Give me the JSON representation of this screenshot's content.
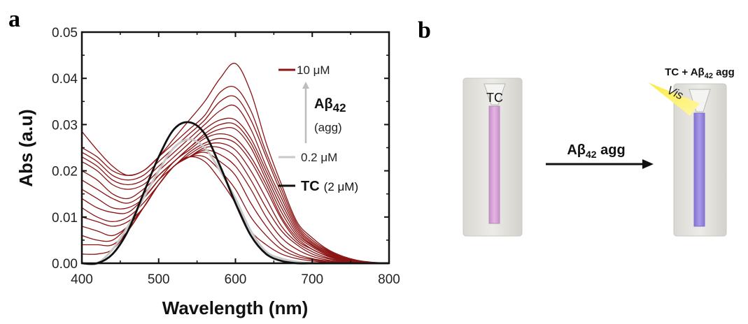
{
  "panels": {
    "a": "a",
    "b": "b"
  },
  "chart_data": {
    "type": "line",
    "xlabel": "Wavelength (nm)",
    "ylabel": "Abs (a.u)",
    "xlim": [
      400,
      800
    ],
    "ylim": [
      0.0,
      0.05
    ],
    "x_ticks": [
      "400",
      "500",
      "600",
      "700",
      "800"
    ],
    "y_ticks": [
      "0.00",
      "0.01",
      "0.02",
      "0.03",
      "0.04",
      "0.05"
    ],
    "grid": false,
    "legend_position": "top-right",
    "colors": {
      "abeta": "#8b1414",
      "tc": "#111111",
      "low": "#c8c8c8",
      "arrow": "#bdbdbd"
    },
    "legend": {
      "top_label": "10 μM",
      "species": "Aβ",
      "species_sub": "42",
      "state": "(agg)",
      "bottom_label": "0.2 μM",
      "tc_name": "TC",
      "tc_conc": "(2 μM)"
    },
    "series": [
      {
        "kind": "tc",
        "x": [
          400,
          420,
          440,
          460,
          480,
          500,
          520,
          540,
          560,
          580,
          600,
          620,
          640,
          660,
          680,
          700,
          720,
          740,
          760,
          780,
          800
        ],
        "values": [
          0.0,
          0.0,
          0.002,
          0.007,
          0.015,
          0.023,
          0.029,
          0.0305,
          0.028,
          0.021,
          0.013,
          0.006,
          0.002,
          0.0005,
          0.0,
          0.0,
          0.0,
          0.0,
          0.0,
          0.0,
          0.0
        ]
      },
      {
        "kind": "low",
        "x": [
          400,
          420,
          440,
          460,
          480,
          500,
          520,
          540,
          560,
          580,
          600,
          620,
          640,
          660,
          680,
          700,
          720,
          740,
          760,
          780,
          800
        ],
        "values": [
          0.0,
          0.0,
          0.003,
          0.008,
          0.014,
          0.02,
          0.025,
          0.0268,
          0.025,
          0.02,
          0.014,
          0.007,
          0.0025,
          0.001,
          0.0003,
          0.0,
          0.0,
          0.0,
          0.0,
          0.0,
          0.0
        ]
      },
      {
        "kind": "abeta",
        "x": [
          400,
          420,
          440,
          460,
          480,
          500,
          520,
          540,
          560,
          580,
          600,
          620,
          640,
          660,
          680,
          700,
          720,
          740,
          760,
          780,
          800
        ],
        "values": [
          0.002,
          0.002,
          0.003,
          0.007,
          0.012,
          0.017,
          0.021,
          0.023,
          0.022,
          0.018,
          0.013,
          0.007,
          0.004,
          0.002,
          0.001,
          0.0005,
          0.0002,
          0.0,
          0.0,
          0.0,
          0.0
        ]
      },
      {
        "kind": "abeta",
        "x": [
          400,
          420,
          440,
          460,
          480,
          500,
          520,
          540,
          560,
          580,
          600,
          620,
          640,
          660,
          680,
          700,
          720,
          740,
          760,
          780,
          800
        ],
        "values": [
          0.004,
          0.004,
          0.004,
          0.007,
          0.012,
          0.017,
          0.021,
          0.023,
          0.023,
          0.02,
          0.016,
          0.01,
          0.006,
          0.003,
          0.0015,
          0.0008,
          0.0003,
          0.0001,
          0.0,
          0.0,
          0.0
        ]
      },
      {
        "kind": "abeta",
        "x": [
          400,
          420,
          440,
          460,
          480,
          500,
          520,
          540,
          560,
          580,
          600,
          620,
          640,
          660,
          680,
          700,
          720,
          740,
          760,
          780,
          800
        ],
        "values": [
          0.006,
          0.005,
          0.005,
          0.008,
          0.012,
          0.017,
          0.021,
          0.023,
          0.024,
          0.022,
          0.019,
          0.013,
          0.008,
          0.004,
          0.002,
          0.001,
          0.0005,
          0.0002,
          0.0,
          0.0,
          0.0
        ]
      },
      {
        "kind": "abeta",
        "x": [
          400,
          420,
          440,
          460,
          480,
          500,
          520,
          540,
          560,
          580,
          600,
          620,
          640,
          660,
          680,
          700,
          720,
          740,
          760,
          780,
          800
        ],
        "values": [
          0.008,
          0.007,
          0.006,
          0.008,
          0.012,
          0.017,
          0.021,
          0.023,
          0.0245,
          0.0235,
          0.021,
          0.016,
          0.01,
          0.0055,
          0.003,
          0.0015,
          0.0007,
          0.0003,
          0.0001,
          0.0,
          0.0
        ]
      },
      {
        "kind": "abeta",
        "x": [
          400,
          420,
          440,
          460,
          480,
          500,
          520,
          540,
          560,
          580,
          600,
          620,
          640,
          660,
          680,
          700,
          720,
          740,
          760,
          780,
          800
        ],
        "values": [
          0.01,
          0.009,
          0.008,
          0.009,
          0.012,
          0.017,
          0.021,
          0.023,
          0.025,
          0.025,
          0.023,
          0.018,
          0.012,
          0.007,
          0.004,
          0.002,
          0.001,
          0.0004,
          0.0001,
          0.0,
          0.0
        ]
      },
      {
        "kind": "abeta",
        "x": [
          400,
          420,
          440,
          460,
          480,
          500,
          520,
          540,
          560,
          580,
          600,
          620,
          640,
          660,
          680,
          700,
          720,
          740,
          760,
          780,
          800
        ],
        "values": [
          0.012,
          0.01,
          0.009,
          0.01,
          0.013,
          0.017,
          0.021,
          0.0235,
          0.0255,
          0.026,
          0.0245,
          0.02,
          0.014,
          0.008,
          0.0045,
          0.0025,
          0.0012,
          0.0005,
          0.0002,
          0.0,
          0.0
        ]
      },
      {
        "kind": "abeta",
        "x": [
          400,
          420,
          440,
          460,
          480,
          500,
          520,
          540,
          560,
          580,
          600,
          620,
          640,
          660,
          680,
          700,
          720,
          740,
          760,
          780,
          800
        ],
        "values": [
          0.014,
          0.012,
          0.011,
          0.011,
          0.014,
          0.018,
          0.021,
          0.024,
          0.026,
          0.027,
          0.026,
          0.022,
          0.016,
          0.0095,
          0.005,
          0.003,
          0.0015,
          0.0006,
          0.0002,
          0.0,
          0.0
        ]
      },
      {
        "kind": "abeta",
        "x": [
          400,
          420,
          440,
          460,
          480,
          500,
          520,
          540,
          560,
          580,
          600,
          620,
          640,
          660,
          680,
          700,
          720,
          740,
          760,
          780,
          800
        ],
        "values": [
          0.016,
          0.014,
          0.012,
          0.012,
          0.014,
          0.018,
          0.022,
          0.0245,
          0.027,
          0.028,
          0.027,
          0.023,
          0.017,
          0.01,
          0.0055,
          0.003,
          0.0016,
          0.0007,
          0.0002,
          0.0,
          0.0
        ]
      },
      {
        "kind": "abeta",
        "x": [
          400,
          420,
          440,
          460,
          480,
          500,
          520,
          540,
          560,
          580,
          600,
          620,
          640,
          660,
          680,
          700,
          720,
          740,
          760,
          780,
          800
        ],
        "values": [
          0.018,
          0.016,
          0.014,
          0.013,
          0.015,
          0.019,
          0.022,
          0.025,
          0.0275,
          0.029,
          0.029,
          0.025,
          0.018,
          0.011,
          0.006,
          0.0035,
          0.0018,
          0.0008,
          0.0003,
          0.0001,
          0.0
        ]
      },
      {
        "kind": "abeta",
        "x": [
          400,
          420,
          440,
          460,
          480,
          500,
          520,
          540,
          560,
          580,
          600,
          620,
          640,
          660,
          680,
          700,
          720,
          740,
          760,
          780,
          800
        ],
        "values": [
          0.02,
          0.018,
          0.015,
          0.014,
          0.016,
          0.019,
          0.022,
          0.025,
          0.028,
          0.03,
          0.03,
          0.026,
          0.019,
          0.012,
          0.0065,
          0.0038,
          0.002,
          0.0009,
          0.0003,
          0.0001,
          0.0
        ]
      },
      {
        "kind": "abeta",
        "x": [
          400,
          420,
          440,
          460,
          480,
          500,
          520,
          540,
          560,
          580,
          600,
          620,
          640,
          660,
          680,
          700,
          720,
          740,
          760,
          780,
          800
        ],
        "values": [
          0.022,
          0.02,
          0.017,
          0.016,
          0.017,
          0.02,
          0.023,
          0.026,
          0.029,
          0.031,
          0.031,
          0.027,
          0.02,
          0.013,
          0.007,
          0.004,
          0.0022,
          0.001,
          0.0004,
          0.0001,
          0.0
        ]
      },
      {
        "kind": "abeta",
        "x": [
          400,
          420,
          440,
          460,
          480,
          500,
          520,
          540,
          560,
          580,
          600,
          620,
          640,
          660,
          680,
          700,
          720,
          740,
          760,
          780,
          800
        ],
        "values": [
          0.023,
          0.021,
          0.018,
          0.017,
          0.018,
          0.021,
          0.024,
          0.027,
          0.03,
          0.033,
          0.034,
          0.029,
          0.021,
          0.014,
          0.0075,
          0.0043,
          0.0024,
          0.0011,
          0.0004,
          0.0001,
          0.0
        ]
      },
      {
        "kind": "abeta",
        "x": [
          400,
          420,
          440,
          460,
          480,
          500,
          520,
          540,
          560,
          580,
          600,
          620,
          640,
          660,
          680,
          700,
          720,
          740,
          760,
          780,
          800
        ],
        "values": [
          0.024,
          0.022,
          0.019,
          0.018,
          0.019,
          0.022,
          0.025,
          0.028,
          0.031,
          0.035,
          0.036,
          0.031,
          0.023,
          0.015,
          0.008,
          0.0046,
          0.0026,
          0.0012,
          0.0005,
          0.0001,
          0.0
        ]
      },
      {
        "kind": "abeta",
        "x": [
          400,
          420,
          440,
          460,
          480,
          500,
          520,
          540,
          560,
          580,
          600,
          620,
          640,
          660,
          680,
          700,
          720,
          740,
          760,
          780,
          800
        ],
        "values": [
          0.025,
          0.023,
          0.02,
          0.019,
          0.02,
          0.023,
          0.026,
          0.029,
          0.032,
          0.037,
          0.038,
          0.033,
          0.024,
          0.016,
          0.0085,
          0.005,
          0.0028,
          0.0013,
          0.0005,
          0.0001,
          0.0
        ]
      },
      {
        "kind": "abeta",
        "x": [
          400,
          420,
          440,
          460,
          480,
          500,
          520,
          540,
          560,
          580,
          600,
          620,
          640,
          660,
          680,
          700,
          720,
          740,
          760,
          780,
          800
        ],
        "values": [
          0.0285,
          0.0245,
          0.021,
          0.019,
          0.02,
          0.023,
          0.027,
          0.031,
          0.035,
          0.04,
          0.0432,
          0.037,
          0.026,
          0.017,
          0.009,
          0.0055,
          0.003,
          0.0015,
          0.0006,
          0.0002,
          0.0
        ]
      }
    ]
  },
  "photos": {
    "left_label": "TC",
    "arrow_label_main": "Aβ",
    "arrow_label_sub": "42",
    "arrow_label_rest": " agg",
    "right_label_pre": "TC + Aβ",
    "right_label_sub": "42",
    "right_label_rest": " agg",
    "light_label": "Vis",
    "colors": {
      "pink": "#d7a5d8",
      "purple": "#9a86e0",
      "light": "#f7e200",
      "glass": "#dcdcd6"
    }
  }
}
